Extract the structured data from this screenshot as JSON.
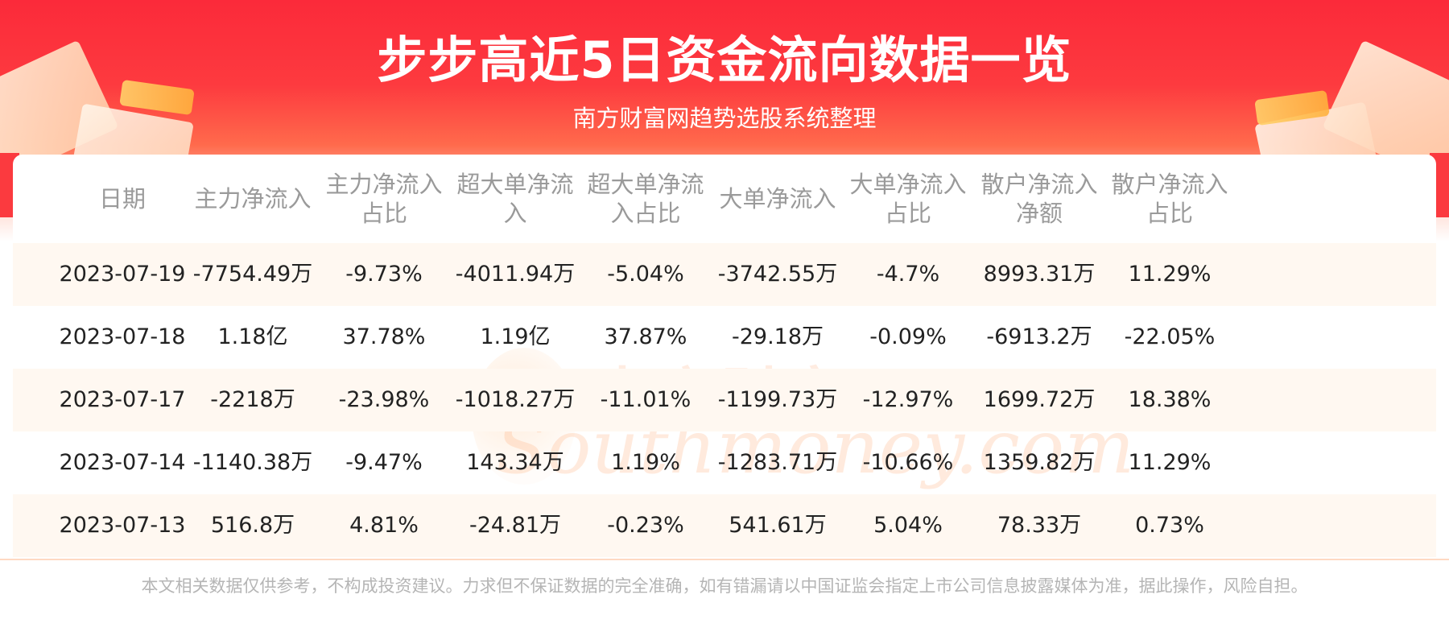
{
  "header": {
    "title": "步步高近5日资金流向数据一览",
    "subtitle": "南方财富网趋势选股系统整理"
  },
  "watermark": {
    "cn": "南方财富网",
    "en": "Southmoney.com"
  },
  "table": {
    "columns": [
      [
        "日期"
      ],
      [
        "主力净流入"
      ],
      [
        "主力净流入",
        "占比"
      ],
      [
        "超大单净流",
        "入"
      ],
      [
        "超大单净流",
        "入占比"
      ],
      [
        "大单净流入"
      ],
      [
        "大单净流入",
        "占比"
      ],
      [
        "散户净流入",
        "净额"
      ],
      [
        "散户净流入",
        "占比"
      ]
    ],
    "rows": [
      [
        "2023-07-19",
        "-7754.49万",
        "-9.73%",
        "-4011.94万",
        "-5.04%",
        "-3742.55万",
        "-4.7%",
        "8993.31万",
        "11.29%"
      ],
      [
        "2023-07-18",
        "1.18亿",
        "37.78%",
        "1.19亿",
        "37.87%",
        "-29.18万",
        "-0.09%",
        "-6913.2万",
        "-22.05%"
      ],
      [
        "2023-07-17",
        "-2218万",
        "-23.98%",
        "-1018.27万",
        "-11.01%",
        "-1199.73万",
        "-12.97%",
        "1699.72万",
        "18.38%"
      ],
      [
        "2023-07-14",
        "-1140.38万",
        "-9.47%",
        "143.34万",
        "1.19%",
        "-1283.71万",
        "-10.66%",
        "1359.82万",
        "11.29%"
      ],
      [
        "2023-07-13",
        "516.8万",
        "4.81%",
        "-24.81万",
        "-0.23%",
        "541.61万",
        "5.04%",
        "78.33万",
        "0.73%"
      ]
    ]
  },
  "footer": {
    "disclaimer": "本文相关数据仅供参考，不构成投资建议。力求但不保证数据的完全准确，如有错漏请以中国证监会指定上市公司信息披露媒体为准，据此操作，风险自担。"
  }
}
